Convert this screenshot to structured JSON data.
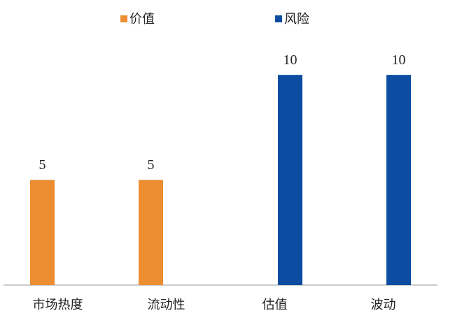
{
  "chart_data": {
    "type": "bar",
    "categories": [
      "市场热度",
      "流动性",
      "估值",
      "波动"
    ],
    "series": [
      {
        "name": "价值",
        "color": "#ed8d31",
        "values": [
          5,
          5,
          null,
          null
        ]
      },
      {
        "name": "风险",
        "color": "#0c4da2",
        "values": [
          null,
          null,
          10,
          10
        ]
      }
    ],
    "ylim": [
      0,
      12
    ],
    "legend": "top"
  }
}
